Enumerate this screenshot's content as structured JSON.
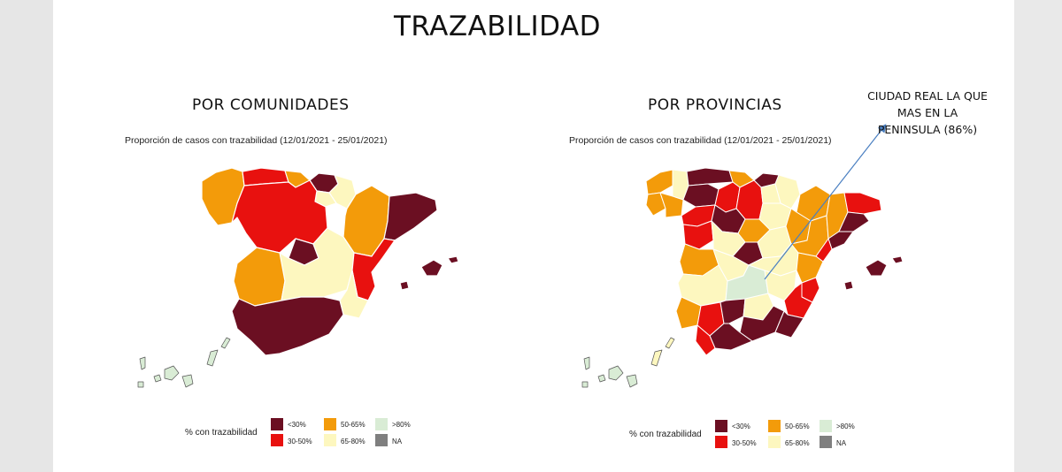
{
  "title": "TRAZABILIDAD",
  "colors": {
    "lt30": "#6b0f22",
    "r30_50": "#e8110f",
    "r50_65": "#f39b0a",
    "r65_80": "#fdf7bf",
    "gt80": "#d9ecd5",
    "na": "#7f7f7f"
  },
  "panels": [
    {
      "heading": "POR COMUNIDADES",
      "chart_title": "Proporción de casos con trazabilidad (12/01/2021 - 25/01/2021)",
      "legend_title": "% con trazabilidad",
      "legend": [
        "<30%",
        "30-50%",
        "50-65%",
        "65-80%",
        ">80%",
        "NA"
      ]
    },
    {
      "heading": "POR PROVINCIAS",
      "chart_title": "Proporción de casos con trazabilidad (12/01/2021 - 25/01/2021)",
      "legend_title": "% con trazabilidad",
      "legend": [
        "<30%",
        "30-50%",
        "50-65%",
        "65-80%",
        ">80%",
        "NA"
      ]
    }
  ],
  "annotation": {
    "text": [
      "CIUDAD REAL LA QUE",
      "MAS EN LA",
      "PENINSULA (86%)"
    ],
    "icon": "arrow-up-right-icon"
  }
}
